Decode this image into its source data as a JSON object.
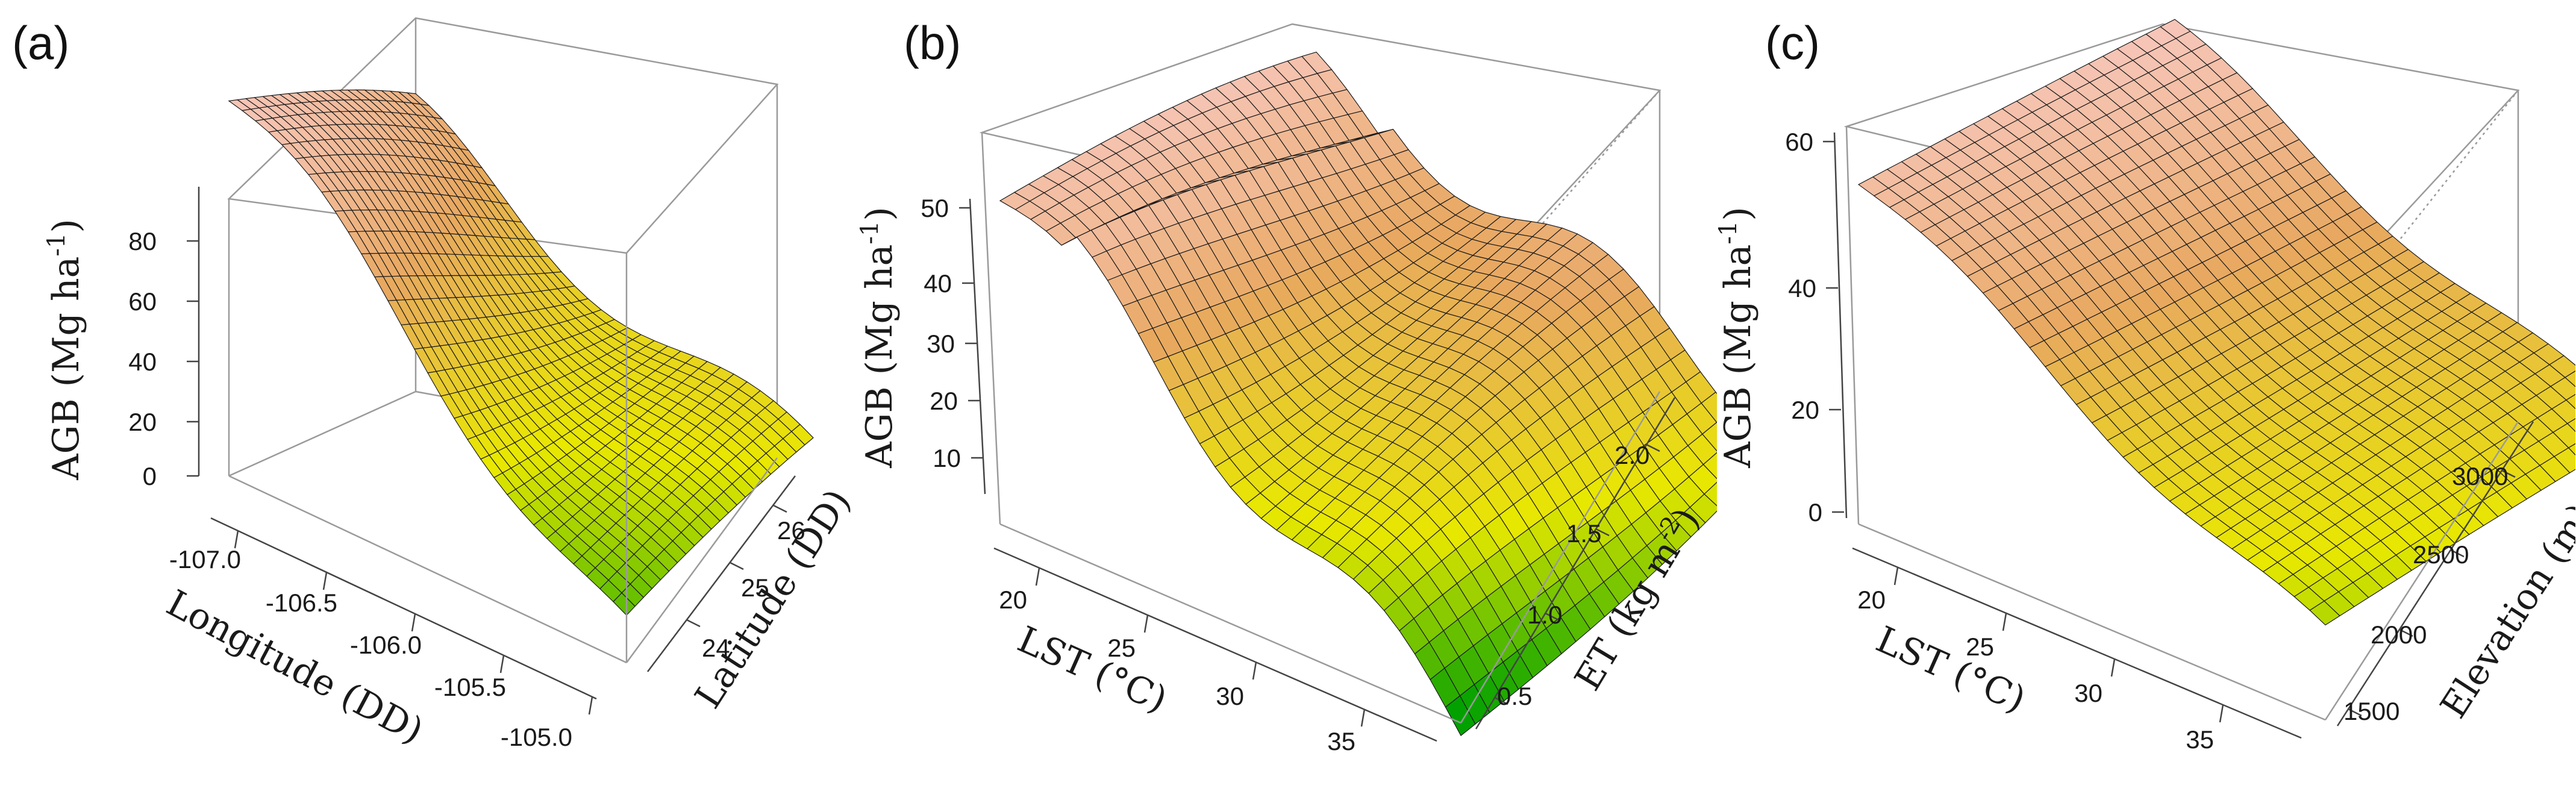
{
  "chart_data": [
    {
      "type": "surface3d",
      "panel_label": "(a)",
      "xlabel": "Longitude (DD)",
      "ylabel": "Latitude (DD)",
      "zlabel_main": "AGB (Mg ha",
      "zlabel_sup": "-1",
      "zlabel_end": ")",
      "x_ticks": [
        "-107.0",
        "-106.5",
        "-106.0",
        "-105.5",
        "-105.0"
      ],
      "y_ticks": [
        "24",
        "25",
        "26"
      ],
      "z_ticks": [
        "0",
        "20",
        "40",
        "60",
        "80"
      ],
      "xlim": [
        -107.2,
        -104.9
      ],
      "ylim": [
        23.5,
        26.7
      ],
      "zlim": [
        -15,
        95
      ],
      "surface_corners": {
        "xmin_ymin": 92,
        "xmin_ymax": 60,
        "xmax_ymin": -5,
        "xmax_ymax": 20
      },
      "colormap": [
        "#00a000",
        "#e8e800",
        "#e8a860",
        "#f8c8c0"
      ]
    },
    {
      "type": "surface3d",
      "panel_label": "(b)",
      "xlabel": "LST (°C)",
      "ylabel_main": "ET (kg m",
      "ylabel_sup": "-2",
      "ylabel_end": ")",
      "zlabel_main": "AGB (Mg ha",
      "zlabel_sup": "-1",
      "zlabel_end": ")",
      "x_ticks": [
        "20",
        "25",
        "30",
        "35"
      ],
      "y_ticks": [
        "0.5",
        "1.0",
        "1.5",
        "2.0"
      ],
      "z_ticks": [
        "10",
        "20",
        "30",
        "40",
        "50"
      ],
      "xlim": [
        16,
        38
      ],
      "ylim": [
        0.3,
        2.3
      ],
      "zlim": [
        3,
        60
      ],
      "surface_corners": {
        "xmin_ymin": 58,
        "xmin_ymax": 56,
        "xmax_ymin": 1,
        "xmax_ymax": 30
      },
      "colormap": [
        "#00a000",
        "#e8e800",
        "#e8a860",
        "#f8c8c0"
      ]
    },
    {
      "type": "surface3d",
      "panel_label": "(c)",
      "xlabel": "LST (°C)",
      "ylabel": "Elevation (m)",
      "zlabel_main": "AGB (Mg ha",
      "zlabel_sup": "-1",
      "zlabel_end": ")",
      "x_ticks": [
        "20",
        "25",
        "30",
        "35"
      ],
      "y_ticks": [
        "1500",
        "2000",
        "2500",
        "3000"
      ],
      "z_ticks": [
        "0",
        "20",
        "40",
        "60"
      ],
      "xlim": [
        16,
        38
      ],
      "ylim": [
        1350,
        3150
      ],
      "zlim": [
        -8,
        68
      ],
      "surface_corners": {
        "xmin_ymin": 60,
        "xmin_ymax": 64,
        "xmax_ymin": 8,
        "xmax_ymax": 22
      },
      "colormap": [
        "#00a000",
        "#e8e800",
        "#e8a860",
        "#f8c8c0"
      ]
    }
  ]
}
